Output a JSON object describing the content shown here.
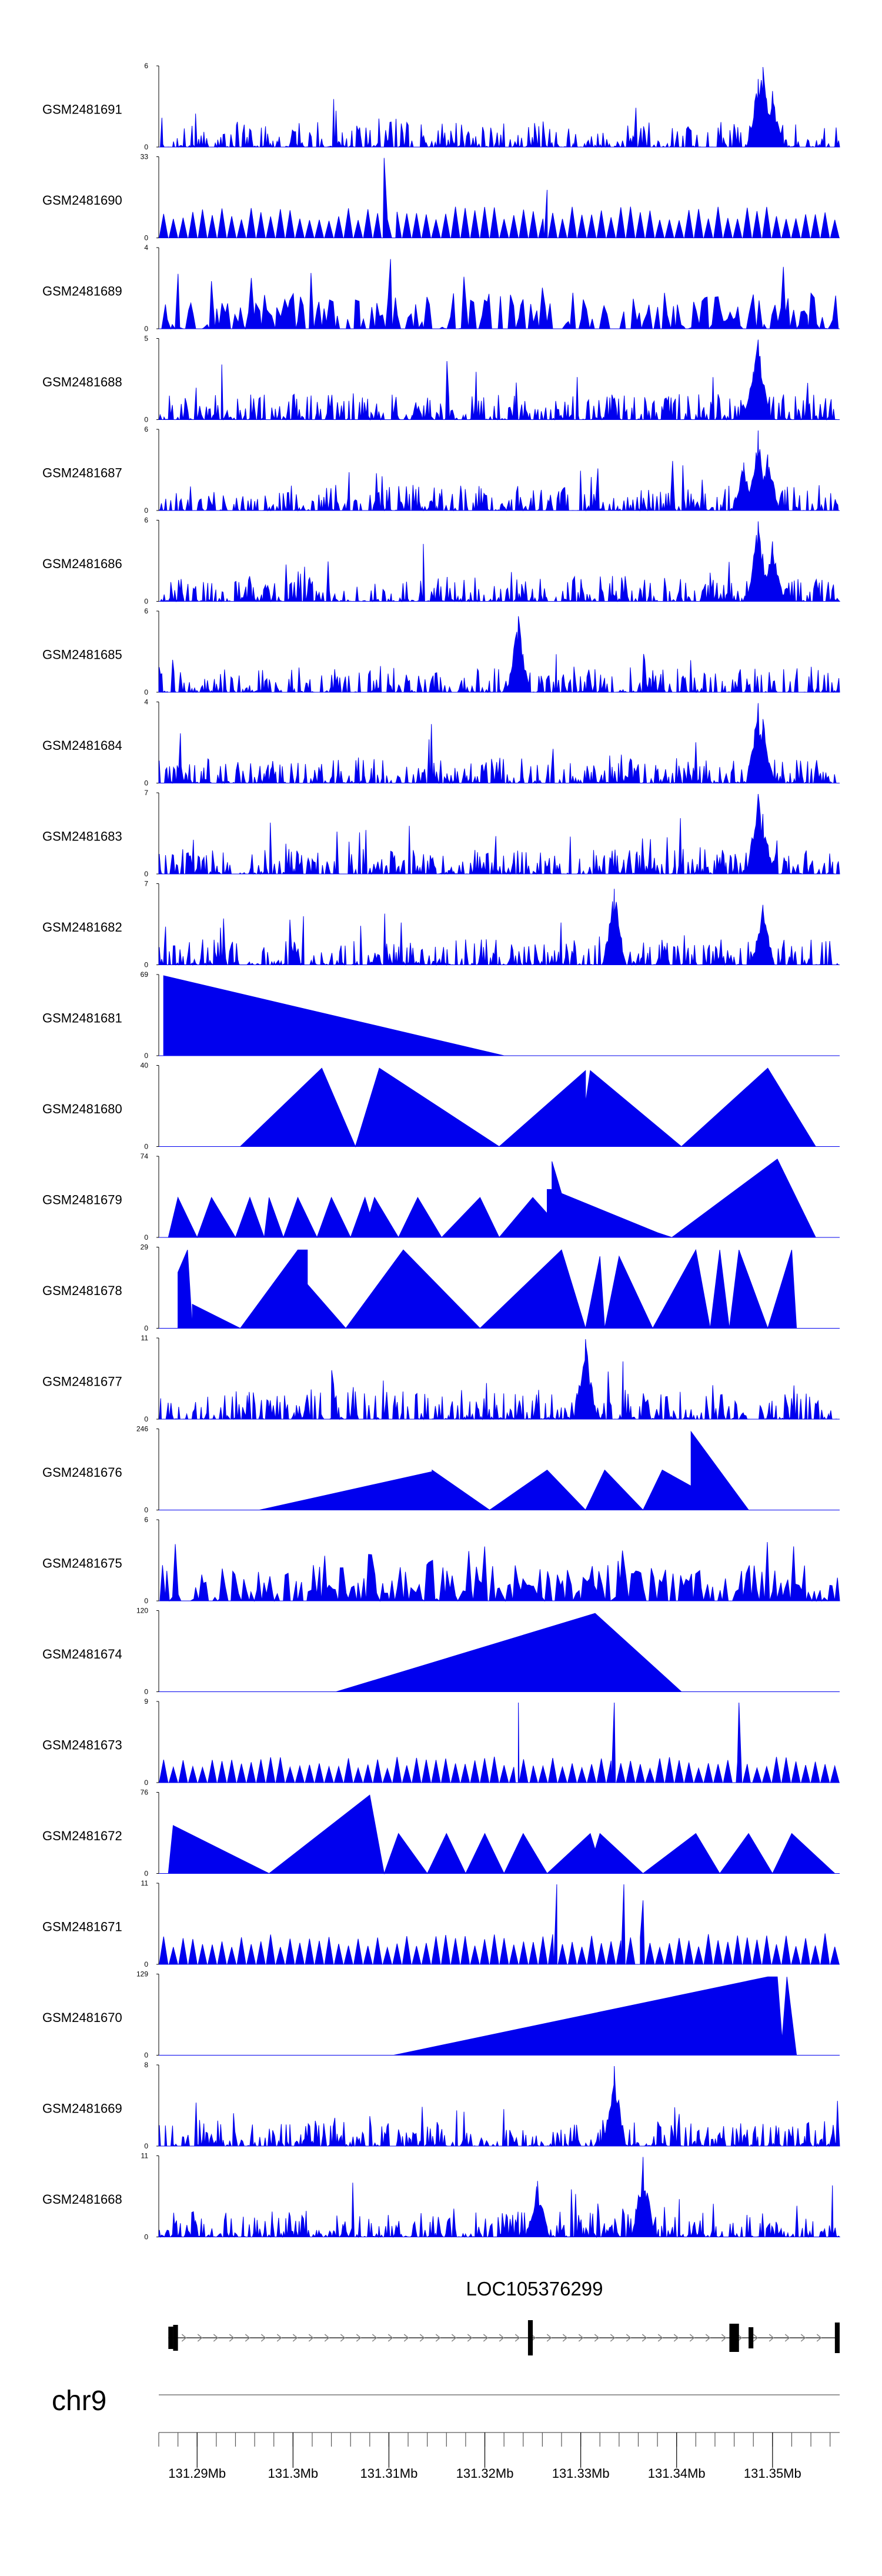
{
  "chart_data": {
    "type": "area",
    "region": {
      "chrom": "chr9",
      "start_mb": 131.286,
      "end_mb": 131.357
    },
    "colors": {
      "signal": "#0000ee",
      "axis": "#000000",
      "gene": "#000000",
      "chrom_line": "#999999"
    },
    "tracks": [
      {
        "name": "GSM2481691",
        "ymax": 6,
        "kind": "dense",
        "seed": 11,
        "peaks": [
          {
            "x": 131.349,
            "h": 1.0
          },
          {
            "x": 131.3485,
            "h": 0.85
          },
          {
            "x": 131.35,
            "h": 0.7
          }
        ]
      },
      {
        "name": "GSM2481690",
        "ymax": 33,
        "kind": "sparse",
        "seed": 12,
        "base": 0.3,
        "peaks": [
          {
            "x": 131.3095,
            "h": 1.0
          },
          {
            "x": 131.3265,
            "h": 0.6
          }
        ]
      },
      {
        "name": "GSM2481689",
        "ymax": 4,
        "kind": "spiky",
        "seed": 13,
        "peaks": []
      },
      {
        "name": "GSM2481688",
        "ymax": 5,
        "kind": "dense",
        "seed": 14,
        "peaks": [
          {
            "x": 131.3485,
            "h": 1.0
          },
          {
            "x": 131.348,
            "h": 0.6
          }
        ]
      },
      {
        "name": "GSM2481687",
        "ymax": 6,
        "kind": "dense",
        "seed": 15,
        "peaks": [
          {
            "x": 131.3485,
            "h": 1.0
          },
          {
            "x": 131.3495,
            "h": 0.7
          },
          {
            "x": 131.347,
            "h": 0.6
          }
        ]
      },
      {
        "name": "GSM2481686",
        "ymax": 6,
        "kind": "dense",
        "seed": 16,
        "peaks": [
          {
            "x": 131.3485,
            "h": 1.0
          },
          {
            "x": 131.35,
            "h": 0.75
          }
        ]
      },
      {
        "name": "GSM2481685",
        "ymax": 6,
        "kind": "dense",
        "seed": 17,
        "peaks": [
          {
            "x": 131.3235,
            "h": 0.95
          }
        ]
      },
      {
        "name": "GSM2481684",
        "ymax": 4,
        "kind": "dense",
        "seed": 18,
        "peaks": [
          {
            "x": 131.3485,
            "h": 1.0
          },
          {
            "x": 131.349,
            "h": 0.8
          }
        ]
      },
      {
        "name": "GSM2481683",
        "ymax": 7,
        "kind": "dense",
        "seed": 19,
        "peaks": [
          {
            "x": 131.3485,
            "h": 1.0
          },
          {
            "x": 131.349,
            "h": 0.75
          }
        ]
      },
      {
        "name": "GSM2481682",
        "ymax": 7,
        "kind": "dense",
        "seed": 20,
        "peaks": [
          {
            "x": 131.3335,
            "h": 0.95
          },
          {
            "x": 131.349,
            "h": 0.75
          }
        ]
      },
      {
        "name": "GSM2481681",
        "ymax": 69,
        "kind": "points",
        "points": [
          [
            131.2865,
            0
          ],
          [
            131.2865,
            1.0
          ],
          [
            131.322,
            0
          ]
        ]
      },
      {
        "name": "GSM2481680",
        "ymax": 40,
        "kind": "points",
        "points": [
          [
            131.2945,
            0
          ],
          [
            131.303,
            0.98
          ],
          [
            131.3065,
            0
          ],
          [
            131.309,
            0.98
          ],
          [
            131.3215,
            0
          ],
          [
            131.3305,
            0.95
          ],
          [
            131.3305,
            0.55
          ],
          [
            131.331,
            0.95
          ],
          [
            131.3405,
            0
          ],
          [
            131.3495,
            0.98
          ],
          [
            131.3545,
            0
          ]
        ]
      },
      {
        "name": "GSM2481679",
        "ymax": 74,
        "kind": "points",
        "points": [
          [
            131.287,
            0
          ],
          [
            131.288,
            0.5
          ],
          [
            131.29,
            0
          ],
          [
            131.2915,
            0.5
          ],
          [
            131.294,
            0
          ],
          [
            131.2955,
            0.5
          ],
          [
            131.297,
            0
          ],
          [
            131.2975,
            0.5
          ],
          [
            131.299,
            0
          ],
          [
            131.3005,
            0.5
          ],
          [
            131.3025,
            0
          ],
          [
            131.304,
            0.5
          ],
          [
            131.306,
            0
          ],
          [
            131.3075,
            0.5
          ],
          [
            131.308,
            0.3
          ],
          [
            131.3085,
            0.5
          ],
          [
            131.311,
            0
          ],
          [
            131.313,
            0.5
          ],
          [
            131.3155,
            0
          ],
          [
            131.3195,
            0.5
          ],
          [
            131.3215,
            0
          ],
          [
            131.325,
            0.5
          ],
          [
            131.3265,
            0.3
          ],
          [
            131.3265,
            0.6
          ],
          [
            131.327,
            0.6
          ],
          [
            131.327,
            0.95
          ],
          [
            131.328,
            0.55
          ],
          [
            131.338,
            0.06
          ],
          [
            131.3395,
            0
          ],
          [
            131.3505,
            0.98
          ],
          [
            131.3545,
            0
          ]
        ]
      },
      {
        "name": "GSM2481678",
        "ymax": 29,
        "kind": "points",
        "points": [
          [
            131.288,
            0
          ],
          [
            131.288,
            0.7
          ],
          [
            131.289,
            0.98
          ],
          [
            131.2895,
            0
          ],
          [
            131.2895,
            0.3
          ],
          [
            131.2945,
            0
          ],
          [
            131.3005,
            0.98
          ],
          [
            131.3015,
            0.98
          ],
          [
            131.3015,
            0.55
          ],
          [
            131.3055,
            0
          ],
          [
            131.3115,
            0.98
          ],
          [
            131.3195,
            0
          ],
          [
            131.328,
            0.98
          ],
          [
            131.3305,
            0
          ],
          [
            131.332,
            0.9
          ],
          [
            131.3325,
            0
          ],
          [
            131.334,
            0.9
          ],
          [
            131.3375,
            0
          ],
          [
            131.342,
            0.98
          ],
          [
            131.3435,
            0
          ],
          [
            131.3445,
            0.98
          ],
          [
            131.3455,
            0
          ],
          [
            131.3465,
            0.98
          ],
          [
            131.3495,
            0
          ],
          [
            131.352,
            0.98
          ],
          [
            131.3525,
            0
          ]
        ]
      },
      {
        "name": "GSM2481677",
        "ymax": 11,
        "kind": "dense",
        "seed": 21,
        "scale": 0.35,
        "peaks": [
          {
            "x": 131.3305,
            "h": 1.0
          }
        ]
      },
      {
        "name": "GSM2481676",
        "ymax": 246,
        "kind": "points",
        "points": [
          [
            131.2965,
            0
          ],
          [
            131.3145,
            0.48
          ],
          [
            131.3145,
            0.2
          ],
          [
            131.3145,
            0.5
          ],
          [
            131.3205,
            0
          ],
          [
            131.3265,
            0.5
          ],
          [
            131.3305,
            0
          ],
          [
            131.3325,
            0.5
          ],
          [
            131.3365,
            0
          ],
          [
            131.3385,
            0.5
          ],
          [
            131.3415,
            0.3
          ],
          [
            131.3415,
            0.98
          ],
          [
            131.3475,
            0
          ]
        ]
      },
      {
        "name": "GSM2481675",
        "ymax": 6,
        "kind": "spiky",
        "seed": 22,
        "peaks": []
      },
      {
        "name": "GSM2481674",
        "ymax": 120,
        "kind": "points",
        "points": [
          [
            131.3045,
            0
          ],
          [
            131.3315,
            0.98
          ],
          [
            131.3405,
            0
          ]
        ]
      },
      {
        "name": "GSM2481673",
        "ymax": 9,
        "kind": "sparse",
        "seed": 23,
        "base": 0.25,
        "peaks": [
          {
            "x": 131.3235,
            "h": 1.0
          },
          {
            "x": 131.3335,
            "h": 1.0
          },
          {
            "x": 131.3465,
            "h": 1.0
          }
        ]
      },
      {
        "name": "GSM2481672",
        "ymax": 76,
        "kind": "points",
        "points": [
          [
            131.287,
            0
          ],
          [
            131.2875,
            0.6
          ],
          [
            131.2975,
            0
          ],
          [
            131.308,
            0.98
          ],
          [
            131.3095,
            0
          ],
          [
            131.311,
            0.5
          ],
          [
            131.314,
            0
          ],
          [
            131.316,
            0.5
          ],
          [
            131.318,
            0
          ],
          [
            131.32,
            0.5
          ],
          [
            131.322,
            0
          ],
          [
            131.324,
            0.5
          ],
          [
            131.3265,
            0
          ],
          [
            131.331,
            0.5
          ],
          [
            131.3315,
            0.3
          ],
          [
            131.332,
            0.5
          ],
          [
            131.3365,
            0
          ],
          [
            131.342,
            0.5
          ],
          [
            131.3445,
            0
          ],
          [
            131.3475,
            0.5
          ],
          [
            131.35,
            0
          ],
          [
            131.352,
            0.5
          ],
          [
            131.3565,
            0
          ]
        ]
      },
      {
        "name": "GSM2481671",
        "ymax": 11,
        "kind": "sparse",
        "seed": 24,
        "base": 0.3,
        "peaks": [
          {
            "x": 131.3275,
            "h": 1.0
          },
          {
            "x": 131.3345,
            "h": 1.0
          },
          {
            "x": 131.3365,
            "h": 0.8
          }
        ]
      },
      {
        "name": "GSM2481670",
        "ymax": 129,
        "kind": "points",
        "points": [
          [
            131.3105,
            0
          ],
          [
            131.3495,
            0.98
          ],
          [
            131.3505,
            0.98
          ],
          [
            131.351,
            0.2
          ],
          [
            131.3515,
            0.98
          ],
          [
            131.3525,
            0
          ]
        ]
      },
      {
        "name": "GSM2481669",
        "ymax": 8,
        "kind": "dense",
        "seed": 25,
        "peaks": [
          {
            "x": 131.3335,
            "h": 1.0
          }
        ]
      },
      {
        "name": "GSM2481668",
        "ymax": 11,
        "kind": "dense",
        "seed": 26,
        "peaks": [
          {
            "x": 131.3255,
            "h": 0.7
          },
          {
            "x": 131.3365,
            "h": 1.0
          }
        ]
      }
    ],
    "gene": {
      "label": "LOC105376299",
      "strand": "+",
      "exons": [
        [
          131.287,
          131.2875
        ],
        [
          131.2875,
          131.288
        ],
        [
          131.3245,
          131.325
        ],
        [
          131.3455,
          131.3465
        ],
        [
          131.3475,
          131.348
        ],
        [
          131.3565,
          131.357
        ]
      ]
    },
    "xaxis": {
      "chrom_label": "chr9",
      "tick_labels": [
        "131.29Mb",
        "131.3Mb",
        "131.31Mb",
        "131.32Mb",
        "131.33Mb",
        "131.34Mb",
        "131.35Mb"
      ],
      "tick_values": [
        131.29,
        131.3,
        131.31,
        131.32,
        131.33,
        131.34,
        131.35
      ],
      "minor_step_mb": 0.002
    }
  }
}
